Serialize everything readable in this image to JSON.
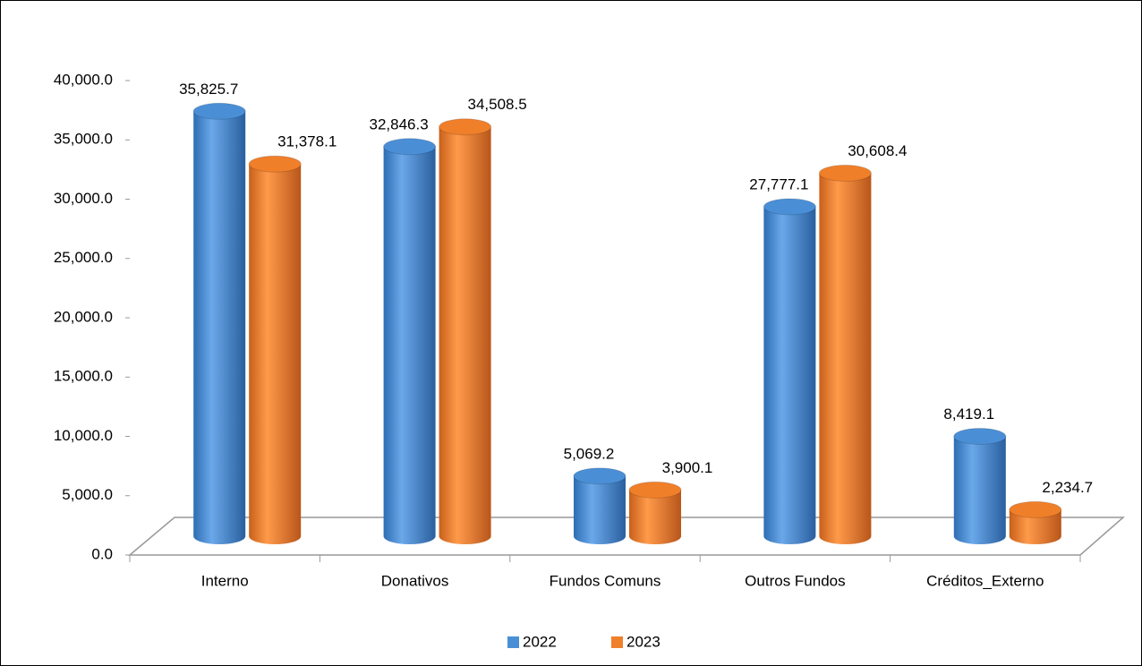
{
  "chart_data": {
    "type": "bar3d",
    "categories": [
      "Interno",
      "Donativos",
      "Fundos Comuns",
      "Outros Fundos",
      "Créditos_Externo"
    ],
    "series": [
      {
        "name": "2022",
        "color": "#4a8fd6",
        "values": [
          35825.7,
          32846.3,
          5069.2,
          27777.1,
          8419.1
        ],
        "value_labels": [
          "35,825.7",
          "32,846.3",
          "5,069.2",
          "27,777.1",
          "8,419.1"
        ]
      },
      {
        "name": "2023",
        "color": "#f07f2a",
        "values": [
          31378.1,
          34508.5,
          3900.1,
          30608.4,
          2234.7
        ],
        "value_labels": [
          "31,378.1",
          "34,508.5",
          "3,900.1",
          "30,608.4",
          "2,234.7"
        ]
      }
    ],
    "ylim": [
      0,
      40000
    ],
    "yticks": [
      {
        "value": 0,
        "label": "0.0"
      },
      {
        "value": 5000,
        "label": "5,000.0"
      },
      {
        "value": 10000,
        "label": "10,000.0"
      },
      {
        "value": 15000,
        "label": "15,000.0"
      },
      {
        "value": 20000,
        "label": "20,000.0"
      },
      {
        "value": 25000,
        "label": "25,000.0"
      },
      {
        "value": 30000,
        "label": "30,000.0"
      },
      {
        "value": 35000,
        "label": "35,000.0"
      },
      {
        "value": 40000,
        "label": "40,000.0"
      }
    ],
    "grid": false,
    "legend": "bottom"
  }
}
